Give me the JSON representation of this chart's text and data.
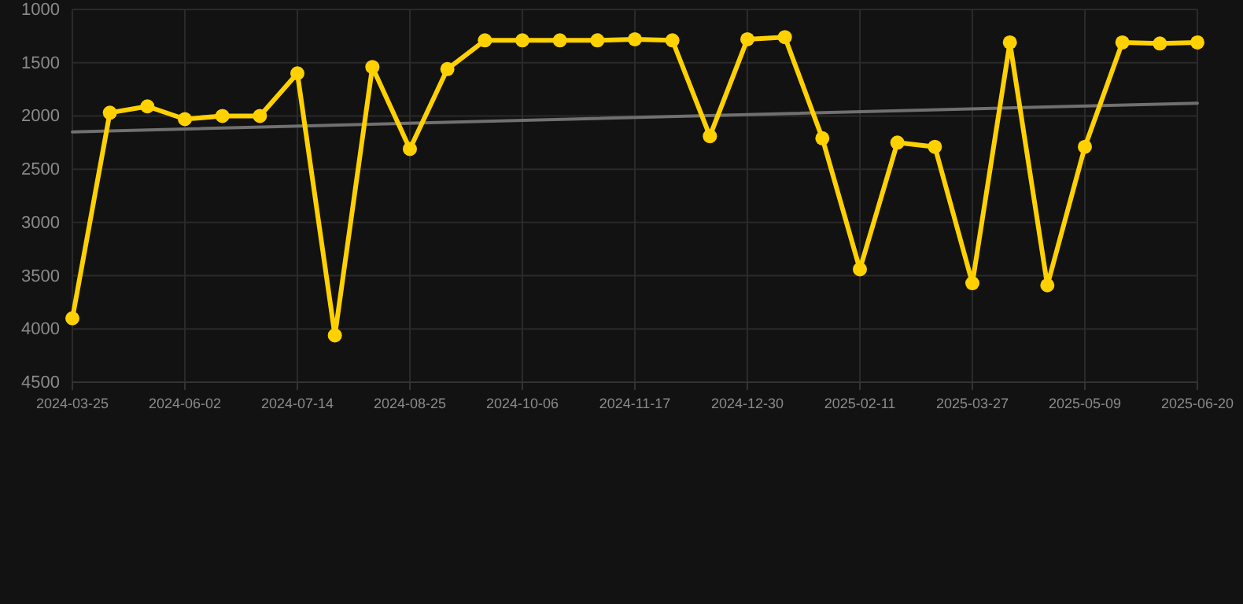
{
  "chart_data": {
    "type": "line",
    "categories": [
      "2024-03-25",
      null,
      null,
      "2024-06-02",
      null,
      null,
      "2024-07-14",
      null,
      null,
      "2024-08-25",
      null,
      null,
      "2024-10-06",
      null,
      null,
      "2024-11-17",
      null,
      null,
      "2024-12-30",
      null,
      null,
      "2025-02-11",
      null,
      null,
      "2025-03-27",
      null,
      null,
      "2025-05-09",
      null,
      null,
      "2025-06-20"
    ],
    "series": [
      {
        "color": "#ffd100",
        "marker": "circle",
        "values": [
          3900,
          1970,
          1910,
          2030,
          2000,
          2000,
          1600,
          4060,
          1540,
          2310,
          1560,
          1290,
          1290,
          1290,
          1290,
          1280,
          1290,
          2190,
          1280,
          1260,
          2210,
          3440,
          2250,
          2290,
          3570,
          1310,
          3590,
          2290,
          1310,
          1320,
          1310
        ]
      },
      {
        "type": "line",
        "color": "#707070",
        "marker": "none",
        "values": [
          2150,
          null,
          null,
          null,
          null,
          null,
          null,
          null,
          null,
          null,
          null,
          null,
          null,
          null,
          null,
          null,
          null,
          null,
          null,
          null,
          null,
          null,
          null,
          null,
          null,
          null,
          null,
          null,
          null,
          null,
          1880
        ]
      }
    ],
    "ylim": [
      4500,
      1000
    ],
    "yticks": [
      1000,
      1500,
      2000,
      2500,
      3000,
      3500,
      4000,
      4500
    ],
    "grid": true
  }
}
